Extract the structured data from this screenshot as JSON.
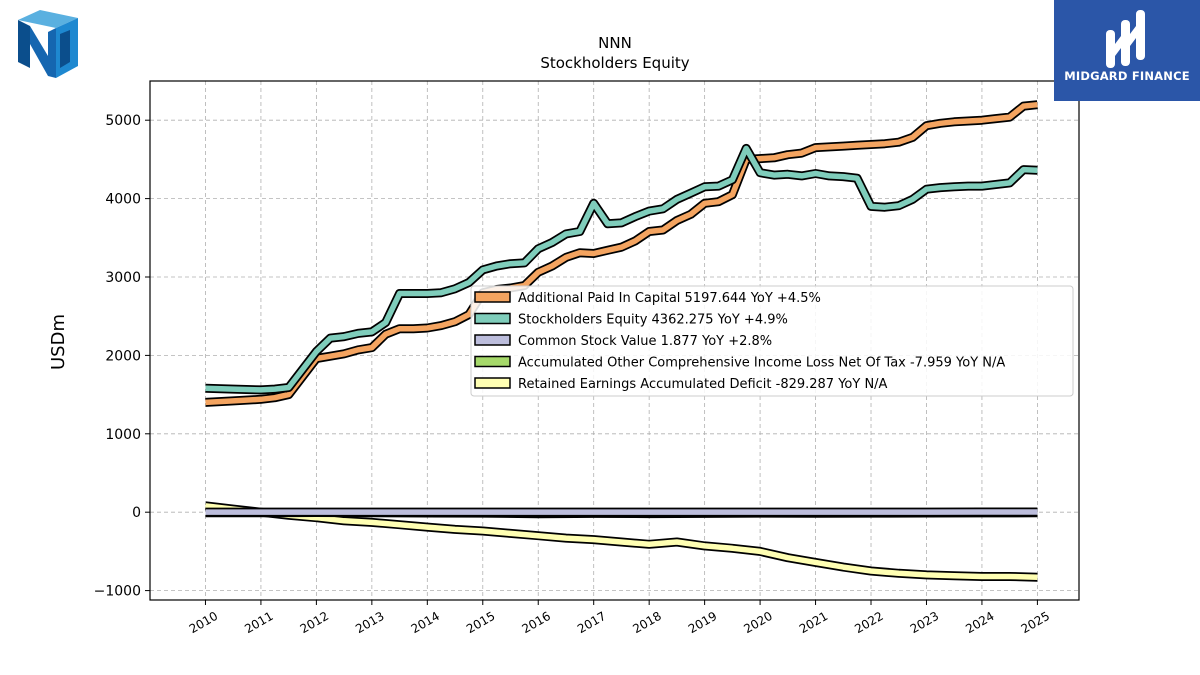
{
  "logos": {
    "left_icon": "nnn-cube-logo",
    "right_icon": "midgard-finance-logo",
    "right_text": "MIDGARD FINANCE",
    "right_bg": "#2b56a8"
  },
  "chart_data": {
    "type": "line",
    "title": "NNN",
    "subtitle": "Stockholders  Equity",
    "xlabel": "",
    "ylabel": "USDm",
    "ylim": [
      -1120,
      5500
    ],
    "xlim": [
      2009.0,
      2025.75
    ],
    "yticks": [
      -1000,
      0,
      1000,
      2000,
      3000,
      4000,
      5000
    ],
    "xticks": [
      2010,
      2011,
      2012,
      2013,
      2014,
      2015,
      2016,
      2017,
      2018,
      2019,
      2020,
      2021,
      2022,
      2023,
      2024,
      2025
    ],
    "grid": true,
    "legend_position": "center-right",
    "series": [
      {
        "name": "Additional Paid In Capital  5197.644 YoY +4.5%",
        "color": "#f4a460",
        "x": [
          2010.0,
          2010.5,
          2011.0,
          2011.25,
          2011.5,
          2012.0,
          2012.25,
          2012.5,
          2012.75,
          2013.0,
          2013.25,
          2013.5,
          2013.75,
          2014.0,
          2014.25,
          2014.5,
          2014.75,
          2015.0,
          2015.25,
          2015.5,
          2015.75,
          2016.0,
          2016.25,
          2016.5,
          2016.75,
          2017.0,
          2017.25,
          2017.5,
          2017.75,
          2018.0,
          2018.25,
          2018.5,
          2018.75,
          2019.0,
          2019.25,
          2019.5,
          2019.75,
          2020.0,
          2020.25,
          2020.5,
          2020.75,
          2021.0,
          2021.25,
          2021.5,
          2021.75,
          2022.0,
          2022.25,
          2022.5,
          2022.75,
          2023.0,
          2023.25,
          2023.5,
          2023.75,
          2024.0,
          2024.25,
          2024.5,
          2024.75,
          2025.0
        ],
        "values": [
          1400,
          1420,
          1440,
          1460,
          1500,
          1960,
          1990,
          2020,
          2070,
          2100,
          2270,
          2340,
          2340,
          2350,
          2380,
          2430,
          2520,
          2800,
          2840,
          2860,
          2890,
          3060,
          3140,
          3250,
          3310,
          3300,
          3340,
          3380,
          3460,
          3580,
          3600,
          3720,
          3800,
          3940,
          3960,
          4050,
          4500,
          4510,
          4520,
          4560,
          4580,
          4650,
          4660,
          4670,
          4680,
          4690,
          4700,
          4720,
          4780,
          4930,
          4960,
          4980,
          4990,
          5000,
          5020,
          5040,
          5180,
          5197.644
        ]
      },
      {
        "name": "Stockholders Equity  4362.275 YoY +4.9%",
        "color": "#7fcdbb",
        "x": [
          2010.0,
          2010.5,
          2011.0,
          2011.25,
          2011.5,
          2012.0,
          2012.25,
          2012.5,
          2012.75,
          2013.0,
          2013.25,
          2013.5,
          2013.75,
          2014.0,
          2014.25,
          2014.5,
          2014.75,
          2015.0,
          2015.25,
          2015.5,
          2015.75,
          2016.0,
          2016.25,
          2016.5,
          2016.75,
          2017.0,
          2017.25,
          2017.5,
          2017.75,
          2018.0,
          2018.25,
          2018.5,
          2018.75,
          2019.0,
          2019.25,
          2019.5,
          2019.75,
          2020.0,
          2020.25,
          2020.5,
          2020.75,
          2021.0,
          2021.25,
          2021.5,
          2021.75,
          2022.0,
          2022.25,
          2022.5,
          2022.75,
          2023.0,
          2023.25,
          2023.5,
          2023.75,
          2024.0,
          2024.25,
          2024.5,
          2024.75,
          2025.0
        ],
        "values": [
          1580,
          1570,
          1560,
          1570,
          1590,
          2050,
          2220,
          2240,
          2280,
          2300,
          2420,
          2790,
          2790,
          2790,
          2800,
          2850,
          2930,
          3090,
          3140,
          3170,
          3180,
          3360,
          3440,
          3550,
          3580,
          3940,
          3680,
          3690,
          3770,
          3840,
          3870,
          3990,
          4070,
          4150,
          4160,
          4240,
          4640,
          4330,
          4300,
          4310,
          4290,
          4320,
          4290,
          4280,
          4260,
          3900,
          3890,
          3910,
          3990,
          4120,
          4140,
          4150,
          4160,
          4160,
          4180,
          4200,
          4370,
          4362.275
        ]
      },
      {
        "name": "Common Stock Value  1.877 YoY +2.8%",
        "color": "#bcbddc",
        "x": [
          2010.0,
          2011.0,
          2012.0,
          2013.0,
          2014.0,
          2015.0,
          2016.0,
          2017.0,
          2018.0,
          2019.0,
          2020.0,
          2021.0,
          2022.0,
          2023.0,
          2024.0,
          2025.0
        ],
        "values": [
          0.8,
          0.85,
          0.95,
          1.1,
          1.2,
          1.35,
          1.45,
          1.5,
          1.55,
          1.65,
          1.7,
          1.72,
          1.75,
          1.8,
          1.83,
          1.877
        ]
      },
      {
        "name": "Accumulated Other Comprehensive Income Loss Net Of Tax  -7.959 YoY N/A",
        "color": "#a6d96a",
        "x": [
          2010.0,
          2011.0,
          2012.0,
          2013.0,
          2014.0,
          2015.0,
          2016.0,
          2017.0,
          2018.0,
          2019.0,
          2020.0,
          2021.0,
          2022.0,
          2023.0,
          2024.0,
          2025.0
        ],
        "values": [
          -8,
          -7,
          -4,
          -6,
          -10,
          -12,
          -20,
          -16,
          -18,
          -15,
          -12,
          -14,
          -12,
          -10,
          -9,
          -7.959
        ]
      },
      {
        "name": "Retained Earnings Accumulated Deficit  -829.287 YoY N/A",
        "color": "#ffffb3",
        "x": [
          2010.0,
          2010.5,
          2011.0,
          2011.5,
          2012.0,
          2012.5,
          2013.0,
          2013.5,
          2014.0,
          2014.5,
          2015.0,
          2015.5,
          2016.0,
          2016.5,
          2017.0,
          2017.5,
          2018.0,
          2018.5,
          2019.0,
          2019.5,
          2020.0,
          2020.5,
          2021.0,
          2021.5,
          2022.0,
          2022.5,
          2023.0,
          2023.5,
          2024.0,
          2024.5,
          2025.0
        ],
        "values": [
          80,
          40,
          0,
          -40,
          -70,
          -110,
          -130,
          -160,
          -190,
          -220,
          -240,
          -270,
          -300,
          -330,
          -350,
          -380,
          -410,
          -380,
          -430,
          -460,
          -500,
          -580,
          -640,
          -700,
          -750,
          -780,
          -800,
          -810,
          -820,
          -820,
          -829.287
        ]
      }
    ]
  }
}
